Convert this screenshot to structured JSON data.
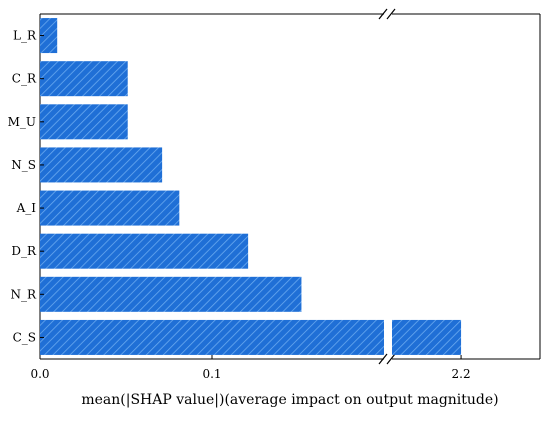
{
  "chart_data": {
    "type": "bar",
    "orientation": "horizontal",
    "categories": [
      "L_R",
      "C_R",
      "M_U",
      "N_S",
      "A_I",
      "D_R",
      "N_R",
      "C_S"
    ],
    "values": [
      0.01,
      0.051,
      0.051,
      0.071,
      0.081,
      0.121,
      0.152,
      2.2
    ],
    "xlabel": "mean(|SHAP value|)(average impact on output magnitude)",
    "ylabel": "",
    "broken_axis": {
      "left_range": [
        0.0,
        0.2
      ],
      "right_range": [
        2.165,
        2.24
      ],
      "left_ticks": [
        "0.0",
        "0.1"
      ],
      "right_ticks": [
        "2.2"
      ]
    },
    "grid": false,
    "legend": "none",
    "bar_color": "#1f6fd6",
    "hatch_color": "#5aa0ee"
  }
}
